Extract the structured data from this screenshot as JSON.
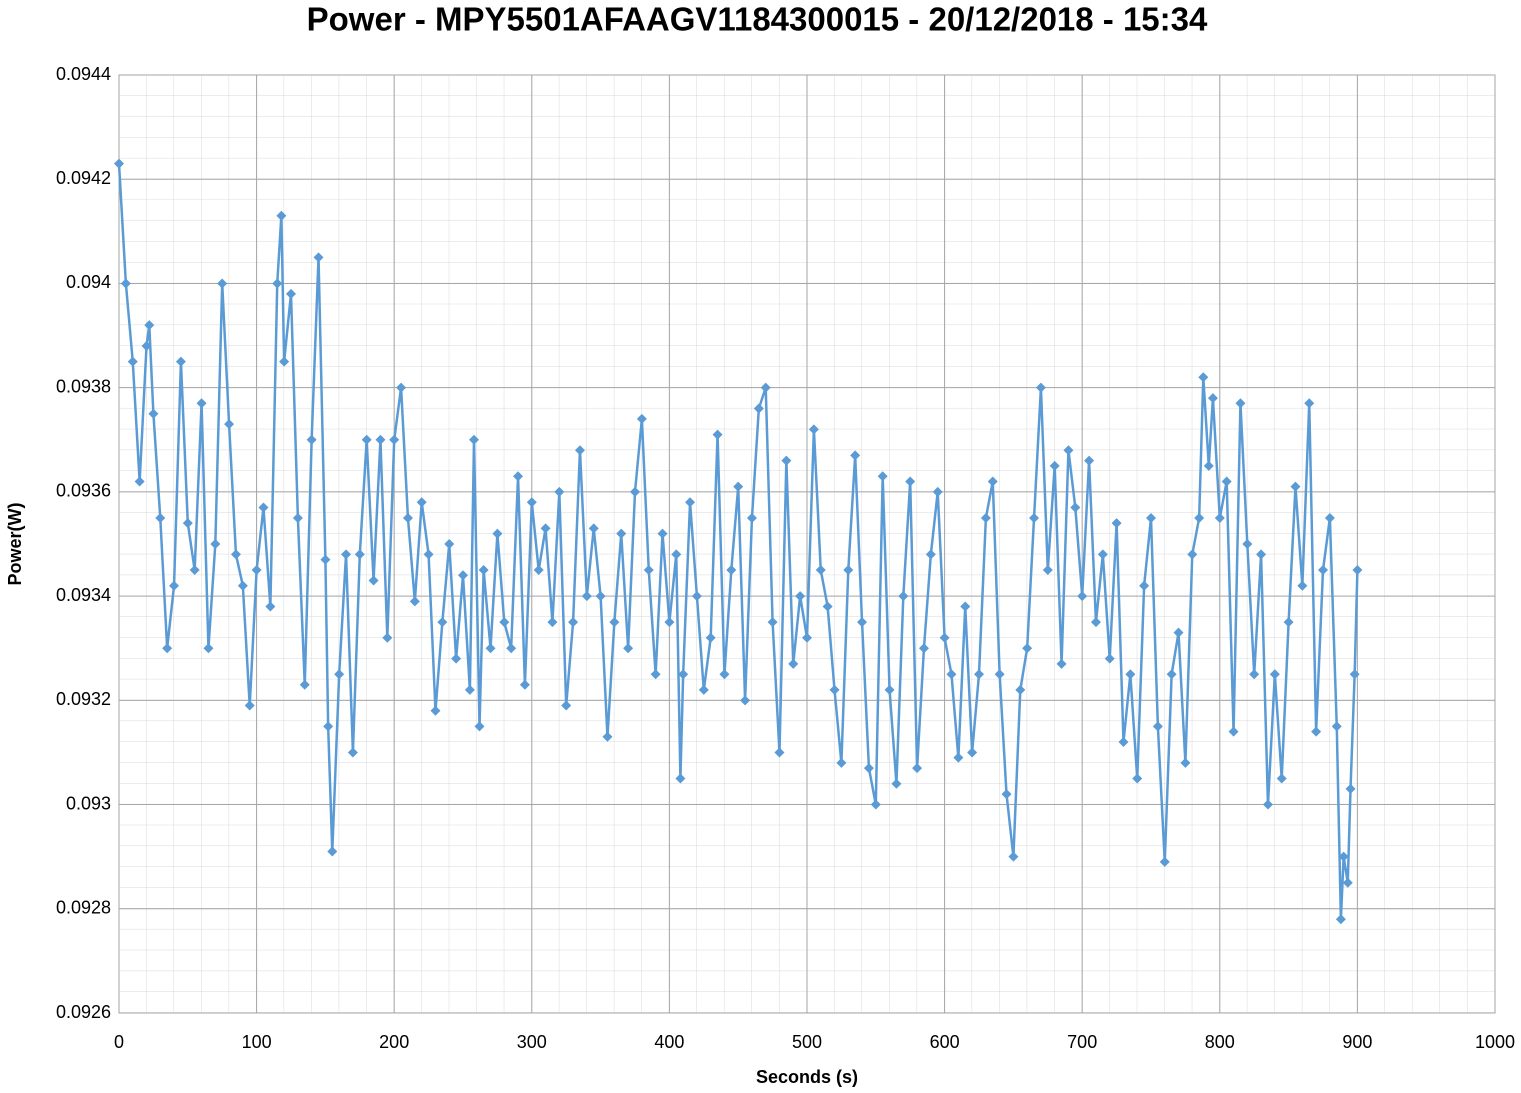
{
  "chart_data": {
    "type": "line",
    "title": "Power - MPY5501AFAAGV1184300015 - 20/12/2018 - 15:34",
    "xlabel": "Seconds (s)",
    "ylabel": "Power(W)",
    "xlim": [
      0,
      1000
    ],
    "xticks": [
      0,
      100,
      200,
      300,
      400,
      500,
      600,
      700,
      800,
      900,
      1000
    ],
    "ylim": [
      0.0926,
      0.0944
    ],
    "yticks": [
      0.0926,
      0.0928,
      0.093,
      0.0932,
      0.0934,
      0.0936,
      0.0938,
      0.094,
      0.0942,
      0.0944
    ],
    "grid": true,
    "minor_grid": true,
    "marker": "diamond",
    "series": [
      {
        "name": "Power(W)",
        "color": "#5b9bd5",
        "x": [
          0,
          5,
          10,
          15,
          20,
          22,
          25,
          30,
          35,
          40,
          45,
          50,
          55,
          60,
          65,
          70,
          75,
          80,
          85,
          90,
          95,
          100,
          105,
          110,
          115,
          118,
          120,
          125,
          130,
          135,
          140,
          145,
          150,
          152,
          155,
          160,
          165,
          170,
          175,
          180,
          185,
          190,
          195,
          200,
          205,
          210,
          215,
          220,
          225,
          230,
          235,
          240,
          245,
          250,
          255,
          258,
          262,
          265,
          270,
          275,
          280,
          285,
          290,
          295,
          300,
          305,
          310,
          315,
          320,
          325,
          330,
          335,
          340,
          345,
          350,
          355,
          360,
          365,
          370,
          375,
          380,
          385,
          390,
          395,
          400,
          405,
          408,
          410,
          415,
          420,
          425,
          430,
          435,
          440,
          445,
          450,
          455,
          460,
          465,
          470,
          475,
          480,
          485,
          490,
          495,
          500,
          505,
          510,
          515,
          520,
          525,
          530,
          535,
          540,
          545,
          550,
          555,
          560,
          565,
          570,
          575,
          580,
          585,
          590,
          595,
          600,
          605,
          610,
          615,
          620,
          625,
          630,
          635,
          640,
          645,
          650,
          655,
          660,
          665,
          670,
          675,
          680,
          685,
          690,
          695,
          700,
          705,
          710,
          715,
          720,
          725,
          730,
          735,
          740,
          745,
          750,
          755,
          760,
          765,
          770,
          775,
          780,
          785,
          788,
          792,
          795,
          800,
          805,
          810,
          815,
          820,
          825,
          830,
          835,
          840,
          845,
          850,
          855,
          860,
          865,
          870,
          875,
          880,
          885,
          888,
          890,
          893,
          895,
          898,
          900
        ],
        "values": [
          0.09423,
          0.094,
          0.09385,
          0.09362,
          0.09388,
          0.09392,
          0.09375,
          0.09355,
          0.0933,
          0.09342,
          0.09385,
          0.09354,
          0.09345,
          0.09377,
          0.0933,
          0.0935,
          0.094,
          0.09373,
          0.09348,
          0.09342,
          0.09319,
          0.09345,
          0.09357,
          0.09338,
          0.094,
          0.09413,
          0.09385,
          0.09398,
          0.09355,
          0.09323,
          0.0937,
          0.09405,
          0.09347,
          0.09315,
          0.09291,
          0.09325,
          0.09348,
          0.0931,
          0.09348,
          0.0937,
          0.09343,
          0.0937,
          0.09332,
          0.0937,
          0.0938,
          0.09355,
          0.09339,
          0.09358,
          0.09348,
          0.09318,
          0.09335,
          0.0935,
          0.09328,
          0.09344,
          0.09322,
          0.0937,
          0.09315,
          0.09345,
          0.0933,
          0.09352,
          0.09335,
          0.0933,
          0.09363,
          0.09323,
          0.09358,
          0.09345,
          0.09353,
          0.09335,
          0.0936,
          0.09319,
          0.09335,
          0.09368,
          0.0934,
          0.09353,
          0.0934,
          0.09313,
          0.09335,
          0.09352,
          0.0933,
          0.0936,
          0.09374,
          0.09345,
          0.09325,
          0.09352,
          0.09335,
          0.09348,
          0.09305,
          0.09325,
          0.09358,
          0.0934,
          0.09322,
          0.09332,
          0.09371,
          0.09325,
          0.09345,
          0.09361,
          0.0932,
          0.09355,
          0.09376,
          0.0938,
          0.09335,
          0.0931,
          0.09366,
          0.09327,
          0.0934,
          0.09332,
          0.09372,
          0.09345,
          0.09338,
          0.09322,
          0.09308,
          0.09345,
          0.09367,
          0.09335,
          0.09307,
          0.093,
          0.09363,
          0.09322,
          0.09304,
          0.0934,
          0.09362,
          0.09307,
          0.0933,
          0.09348,
          0.0936,
          0.09332,
          0.09325,
          0.09309,
          0.09338,
          0.0931,
          0.09325,
          0.09355,
          0.09362,
          0.09325,
          0.09302,
          0.0929,
          0.09322,
          0.0933,
          0.09355,
          0.0938,
          0.09345,
          0.09365,
          0.09327,
          0.09368,
          0.09357,
          0.0934,
          0.09366,
          0.09335,
          0.09348,
          0.09328,
          0.09354,
          0.09312,
          0.09325,
          0.09305,
          0.09342,
          0.09355,
          0.09315,
          0.09289,
          0.09325,
          0.09333,
          0.09308,
          0.09348,
          0.09355,
          0.09382,
          0.09365,
          0.09378,
          0.09355,
          0.09362,
          0.09314,
          0.09377,
          0.0935,
          0.09325,
          0.09348,
          0.093,
          0.09325,
          0.09305,
          0.09335,
          0.09361,
          0.09342,
          0.09377,
          0.09314,
          0.09345,
          0.09355,
          0.09315,
          0.09278,
          0.0929,
          0.09285,
          0.09303,
          0.09325,
          0.09345
        ]
      }
    ]
  }
}
